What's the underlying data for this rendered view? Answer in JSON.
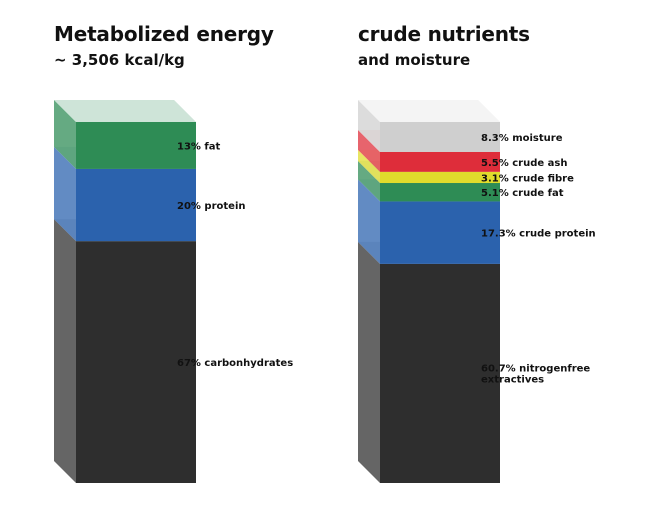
{
  "chart_data": [
    {
      "type": "bar",
      "title": "Metabolized energy",
      "subtitle": "~ 3,506 kcal/kg",
      "series": [
        {
          "value": 67,
          "label": "67% carbonhydrates",
          "color": "#2e2e2e"
        },
        {
          "value": 20,
          "label": "20% protein",
          "color": "#2b62ad"
        },
        {
          "value": 13,
          "label": "13% fat",
          "color": "#2e8c55"
        }
      ]
    },
    {
      "type": "bar",
      "title": "crude nutrients",
      "subtitle": "and moisture",
      "series": [
        {
          "value": 60.7,
          "label": "60.7% nitrogenfree extractives",
          "color": "#2e2e2e"
        },
        {
          "value": 17.3,
          "label": "17.3% crude protein",
          "color": "#2b62ad"
        },
        {
          "value": 5.1,
          "label": "5.1% crude fat",
          "color": "#2e8c55"
        },
        {
          "value": 3.1,
          "label": "3.1% crude fibre",
          "color": "#e0dc2c"
        },
        {
          "value": 5.5,
          "label": "5.5% crude ash",
          "color": "#de2d3a"
        },
        {
          "value": 8.3,
          "label": "8.3% moisture",
          "color": "#cfcfcf"
        }
      ]
    }
  ]
}
